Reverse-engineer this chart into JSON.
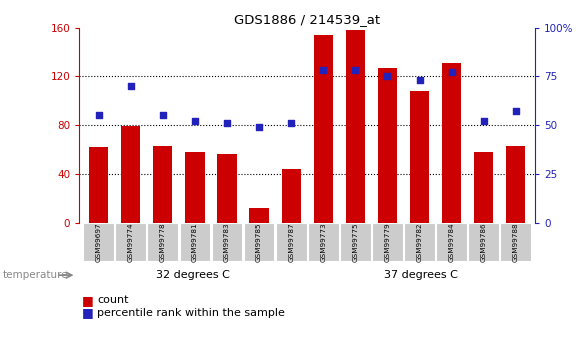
{
  "title": "GDS1886 / 214539_at",
  "samples": [
    "GSM99697",
    "GSM99774",
    "GSM99778",
    "GSM99781",
    "GSM99783",
    "GSM99785",
    "GSM99787",
    "GSM99773",
    "GSM99775",
    "GSM99779",
    "GSM99782",
    "GSM99784",
    "GSM99786",
    "GSM99788"
  ],
  "counts": [
    62,
    79,
    63,
    58,
    56,
    12,
    44,
    154,
    158,
    127,
    108,
    131,
    58,
    63
  ],
  "percentiles": [
    55,
    70,
    55,
    52,
    51,
    49,
    51,
    78,
    78,
    75,
    73,
    77,
    52,
    57
  ],
  "group1_label": "32 degrees C",
  "group2_label": "37 degrees C",
  "group1_count": 7,
  "group2_count": 7,
  "bar_color": "#cc0000",
  "dot_color": "#2222bb",
  "group1_bg": "#ccffcc",
  "group2_bg": "#55cc55",
  "tick_bg": "#cccccc",
  "ylim_left": [
    0,
    160
  ],
  "ylim_right": [
    0,
    100
  ],
  "yticks_left": [
    0,
    40,
    80,
    120,
    160
  ],
  "yticks_right": [
    0,
    25,
    50,
    75,
    100
  ],
  "legend_count": "count",
  "legend_pct": "percentile rank within the sample",
  "temperature_label": "temperature"
}
